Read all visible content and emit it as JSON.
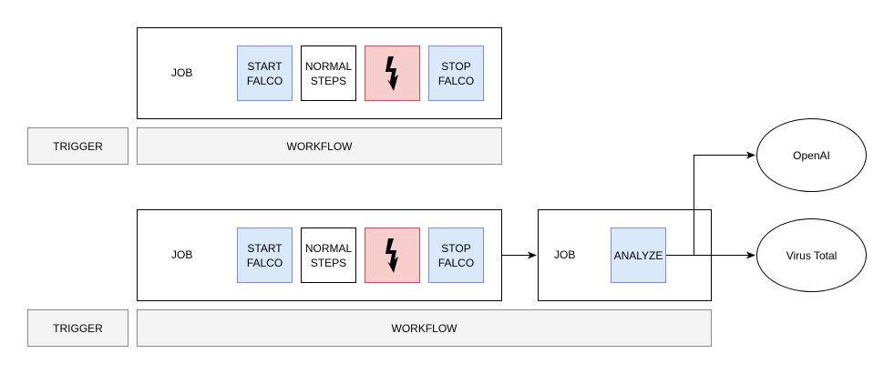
{
  "top_row": {
    "job_label": "JOB",
    "steps": [
      "START\nFALCO",
      "NORMAL\nSTEPS",
      "",
      "STOP\nFALCO"
    ],
    "trigger_label": "TRIGGER",
    "workflow_label": "WORKFLOW"
  },
  "bottom_row": {
    "job_label": "JOB",
    "steps": [
      "START\nFALCO",
      "NORMAL\nSTEPS",
      "",
      "STOP\nFALCO"
    ],
    "analyze_job_label": "JOB",
    "analyze_label": "ANALYZE",
    "trigger_label": "TRIGGER",
    "workflow_label": "WORKFLOW"
  },
  "services": {
    "openai": "OpenAI",
    "virustotal": "Virus Total"
  },
  "icons": {
    "alert": "lightning-icon"
  },
  "colors": {
    "step_blue_fill": "#dae8fc",
    "step_red_fill": "#f8cecc",
    "bar_fill": "#f4f4f4"
  }
}
